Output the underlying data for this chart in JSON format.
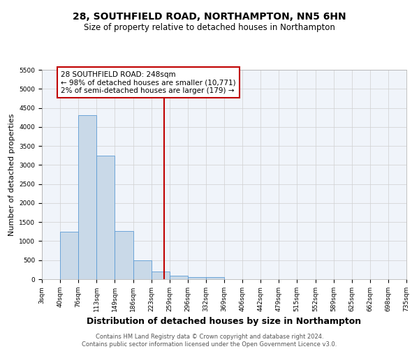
{
  "title": "28, SOUTHFIELD ROAD, NORTHAMPTON, NN5 6HN",
  "subtitle": "Size of property relative to detached houses in Northampton",
  "xlabel": "Distribution of detached houses by size in Northampton",
  "ylabel": "Number of detached properties",
  "footnote": "Contains HM Land Registry data © Crown copyright and database right 2024.\nContains public sector information licensed under the Open Government Licence v3.0.",
  "bin_edges": [
    3,
    40,
    76,
    113,
    149,
    186,
    223,
    259,
    296,
    332,
    369,
    406,
    442,
    479,
    515,
    552,
    589,
    625,
    662,
    698,
    735
  ],
  "bar_heights": [
    0,
    1250,
    4300,
    3250,
    1270,
    490,
    210,
    95,
    60,
    50,
    0,
    0,
    0,
    0,
    0,
    0,
    0,
    0,
    0,
    0
  ],
  "bar_color": "#c9d9e8",
  "bar_edge_color": "#5b9bd5",
  "vline_x": 248,
  "vline_color": "#c00000",
  "annotation_text": "28 SOUTHFIELD ROAD: 248sqm\n← 98% of detached houses are smaller (10,771)\n2% of semi-detached houses are larger (179) →",
  "annotation_box_color": "#c00000",
  "annotation_bg": "white",
  "ylim": [
    0,
    5500
  ],
  "yticks": [
    0,
    500,
    1000,
    1500,
    2000,
    2500,
    3000,
    3500,
    4000,
    4500,
    5000,
    5500
  ],
  "grid_color": "#d0d0d0",
  "bg_color": "#f0f4fa",
  "title_fontsize": 10,
  "subtitle_fontsize": 8.5,
  "xlabel_fontsize": 9,
  "ylabel_fontsize": 8,
  "tick_fontsize": 6.5,
  "annot_fontsize": 7.5,
  "footnote_fontsize": 6
}
